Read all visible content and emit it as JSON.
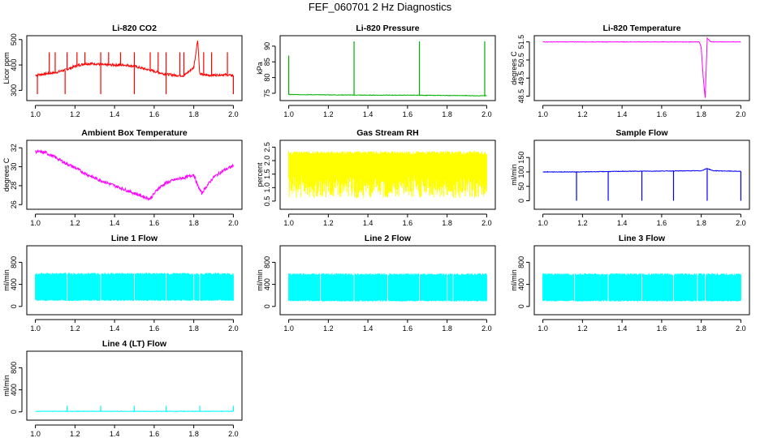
{
  "title": "FEF_060701  2 Hz Diagnostics",
  "colors": {
    "red": "#ff0000",
    "green": "#00b000",
    "magenta": "#ff00ff",
    "yellow": "#ffff00",
    "blue": "#0000ff",
    "cyan": "#00ffff"
  },
  "chart_data": [
    {
      "id": "co2",
      "type": "line",
      "title": "Li-820 CO2",
      "xlabel": "",
      "ylabel": "Licor ppm",
      "color": "red",
      "xlim": [
        1.0,
        2.0
      ],
      "ylim": [
        270,
        505
      ],
      "xticks": [
        "1.0",
        "1.2",
        "1.4",
        "1.6",
        "1.8",
        "2.0"
      ],
      "yticks": [
        {
          "v": 300,
          "label": "300"
        },
        {
          "v": 400,
          "label": "400"
        },
        {
          "v": 500,
          "label": "500"
        }
      ],
      "series": [
        {
          "name": "CO2",
          "x": [
            1.0,
            1.05,
            1.1,
            1.15,
            1.2,
            1.25,
            1.3,
            1.35,
            1.4,
            1.45,
            1.5,
            1.55,
            1.6,
            1.65,
            1.7,
            1.75,
            1.8,
            1.82,
            1.83,
            1.85,
            1.9,
            1.95,
            2.0
          ],
          "y": [
            360,
            365,
            370,
            380,
            395,
            405,
            405,
            400,
            400,
            400,
            395,
            385,
            375,
            365,
            360,
            358,
            390,
            500,
            365,
            360,
            360,
            362,
            358
          ],
          "spikes_up": [
            1.07,
            1.1,
            1.16,
            1.21,
            1.25,
            1.33,
            1.37,
            1.43,
            1.5,
            1.58,
            1.62,
            1.66,
            1.73,
            1.75,
            1.85,
            1.89,
            1.97
          ],
          "spike_up_value": 450,
          "spikes_down": [
            1.01,
            1.15,
            1.33,
            1.5,
            1.66,
            2.0
          ],
          "spike_down_value": 285
        }
      ]
    },
    {
      "id": "pressure",
      "type": "line",
      "title": "Li-820 Pressure",
      "xlabel": "",
      "ylabel": "kPa",
      "color": "green",
      "xlim": [
        1.0,
        2.0
      ],
      "ylim": [
        73.5,
        92.5
      ],
      "xticks": [
        "1.0",
        "1.2",
        "1.4",
        "1.6",
        "1.8",
        "2.0"
      ],
      "yticks": [
        {
          "v": 75,
          "label": "75"
        },
        {
          "v": 80,
          "label": "80"
        },
        {
          "v": 85,
          "label": "85"
        },
        {
          "v": 90,
          "label": "90"
        }
      ],
      "series": [
        {
          "name": "Pressure",
          "x": [
            1.0,
            1.2,
            1.4,
            1.6,
            1.8,
            2.0
          ],
          "y": [
            74.6,
            74.5,
            74.4,
            74.4,
            74.3,
            74.2
          ],
          "spikes_up": [
            1.0,
            1.33,
            1.66,
            1.99
          ],
          "spike_up_values": [
            87,
            91.5,
            91.5,
            91.5
          ],
          "spikes_down": [],
          "spike_down_value": 74
        }
      ]
    },
    {
      "id": "licor_temp",
      "type": "line",
      "title": "Li-820 Temperature",
      "xlabel": "",
      "ylabel": "degrees C",
      "color": "magenta",
      "xlim": [
        1.0,
        2.0
      ],
      "ylim": [
        48.4,
        51.7
      ],
      "xticks": [
        "1.0",
        "1.2",
        "1.4",
        "1.6",
        "1.8",
        "2.0"
      ],
      "yticks": [
        {
          "v": 48.5,
          "label": "48.5"
        },
        {
          "v": 49.5,
          "label": "49.5"
        },
        {
          "v": 50.5,
          "label": "50.5"
        },
        {
          "v": 51.5,
          "label": "51.5"
        }
      ],
      "series": [
        {
          "name": "Licor Temp",
          "x": [
            1.0,
            1.2,
            1.4,
            1.6,
            1.79,
            1.8,
            1.81,
            1.82,
            1.83,
            1.85,
            1.9,
            2.0
          ],
          "y": [
            51.5,
            51.5,
            51.5,
            51.5,
            51.5,
            51.2,
            49.5,
            48.4,
            51.7,
            51.5,
            51.5,
            51.5
          ],
          "spikes_up": [],
          "spikes_down": [],
          "spike_down_value": 48.5
        }
      ]
    },
    {
      "id": "ambient_temp",
      "type": "line",
      "title": "Ambient Box Temperature",
      "xlabel": "",
      "ylabel": "degrees C",
      "color": "magenta",
      "xlim": [
        1.0,
        2.0
      ],
      "ylim": [
        25.8,
        32.5
      ],
      "xticks": [
        "1.0",
        "1.2",
        "1.4",
        "1.6",
        "1.8",
        "2.0"
      ],
      "yticks": [
        {
          "v": 26,
          "label": "26"
        },
        {
          "v": 28,
          "label": "28"
        },
        {
          "v": 30,
          "label": "30"
        },
        {
          "v": 32,
          "label": "32"
        }
      ],
      "series": [
        {
          "name": "Ambient",
          "x": [
            1.0,
            1.05,
            1.1,
            1.15,
            1.2,
            1.25,
            1.3,
            1.35,
            1.4,
            1.45,
            1.5,
            1.55,
            1.58,
            1.62,
            1.66,
            1.7,
            1.74,
            1.78,
            1.8,
            1.82,
            1.84,
            1.86,
            1.9,
            1.95,
            2.0
          ],
          "y": [
            31.6,
            31.5,
            31.0,
            30.4,
            29.9,
            29.3,
            28.8,
            28.4,
            28.0,
            27.6,
            27.2,
            26.8,
            26.6,
            27.7,
            28.3,
            28.6,
            28.8,
            29.0,
            29.2,
            28.0,
            27.2,
            27.8,
            28.9,
            29.6,
            30.1
          ],
          "spikes_up": [],
          "spikes_down": [],
          "spike_down_value": 26
        }
      ]
    },
    {
      "id": "rh",
      "type": "line",
      "title": "Gas Stream RH",
      "xlabel": "",
      "ylabel": "percent",
      "color": "yellow",
      "xlim": [
        1.0,
        2.0
      ],
      "ylim": [
        0.3,
        2.65
      ],
      "xticks": [
        "1.0",
        "1.2",
        "1.4",
        "1.6",
        "1.8",
        "2.0"
      ],
      "yticks": [
        {
          "v": 0.5,
          "label": "0.5"
        },
        {
          "v": 1.0,
          "label": "1.0"
        },
        {
          "v": 1.5,
          "label": "1.5"
        },
        {
          "v": 2.0,
          "label": "2.0"
        },
        {
          "v": 2.5,
          "label": "2.5"
        }
      ],
      "series": [
        {
          "name": "RH",
          "band_low": 0.6,
          "band_high": 2.35,
          "fill": true,
          "x": [
            1.0,
            2.0
          ],
          "y": [
            2.3,
            2.3
          ],
          "spikes_up": [],
          "spikes_down": [],
          "spike_down_value": 0.5
        }
      ]
    },
    {
      "id": "sample_flow",
      "type": "line",
      "title": "Sample Flow",
      "xlabel": "",
      "ylabel": "ml/min",
      "color": "blue",
      "xlim": [
        1.0,
        2.0
      ],
      "ylim": [
        -20,
        200
      ],
      "xticks": [
        "1.0",
        "1.2",
        "1.4",
        "1.6",
        "1.8",
        "2.0"
      ],
      "yticks": [
        {
          "v": 0,
          "label": "0"
        },
        {
          "v": 50,
          "label": "50"
        },
        {
          "v": 100,
          "label": "100"
        },
        {
          "v": 150,
          "label": "150"
        }
      ],
      "series": [
        {
          "name": "Sample Flow",
          "x": [
            1.0,
            1.2,
            1.4,
            1.6,
            1.8,
            1.83,
            1.86,
            2.0
          ],
          "y": [
            100,
            100,
            102,
            103,
            104,
            112,
            104,
            102
          ],
          "spikes_up": [],
          "spikes_down": [
            1.17,
            1.33,
            1.5,
            1.66,
            1.83,
            2.0
          ],
          "spike_down_value": 0
        }
      ]
    },
    {
      "id": "line1",
      "type": "line",
      "title": "Line 1 Flow",
      "xlabel": "",
      "ylabel": "ml/min",
      "color": "cyan",
      "xlim": [
        1.0,
        2.0
      ],
      "ylim": [
        -100,
        1050
      ],
      "xticks": [
        "1.0",
        "1.2",
        "1.4",
        "1.6",
        "1.8",
        "2.0"
      ],
      "yticks": [
        {
          "v": 0,
          "label": "0"
        },
        {
          "v": 400,
          "label": "400"
        },
        {
          "v": 800,
          "label": "800"
        }
      ],
      "series": [
        {
          "name": "Line 1",
          "band_low": 100,
          "band_high": 610,
          "fill": true,
          "gaps": [
            1.16,
            1.33,
            1.5,
            1.66,
            1.8,
            1.83
          ],
          "x": [
            1.0,
            2.0
          ],
          "y": [
            600,
            600
          ],
          "spikes_up": [],
          "spikes_down": [],
          "spike_down_value": 0
        }
      ]
    },
    {
      "id": "line2",
      "type": "line",
      "title": "Line 2 Flow",
      "xlabel": "",
      "ylabel": "ml/min",
      "color": "cyan",
      "xlim": [
        1.0,
        2.0
      ],
      "ylim": [
        -100,
        1050
      ],
      "xticks": [
        "1.0",
        "1.2",
        "1.4",
        "1.6",
        "1.8",
        "2.0"
      ],
      "yticks": [
        {
          "v": 0,
          "label": "0"
        },
        {
          "v": 400,
          "label": "400"
        },
        {
          "v": 800,
          "label": "800"
        }
      ],
      "series": [
        {
          "name": "Line 2",
          "band_low": 90,
          "band_high": 600,
          "fill": true,
          "gaps": [
            1.16,
            1.33,
            1.5,
            1.66,
            1.8,
            1.83
          ],
          "x": [
            1.0,
            2.0
          ],
          "y": [
            590,
            590
          ],
          "spikes_up": [],
          "spikes_down": [],
          "spike_down_value": 0
        }
      ]
    },
    {
      "id": "line3",
      "type": "line",
      "title": "Line 3 Flow",
      "xlabel": "",
      "ylabel": "ml/min",
      "color": "cyan",
      "xlim": [
        1.0,
        2.0
      ],
      "ylim": [
        -100,
        1050
      ],
      "xticks": [
        "1.0",
        "1.2",
        "1.4",
        "1.6",
        "1.8",
        "2.0"
      ],
      "yticks": [
        {
          "v": 0,
          "label": "0"
        },
        {
          "v": 400,
          "label": "400"
        },
        {
          "v": 800,
          "label": "800"
        }
      ],
      "series": [
        {
          "name": "Line 3",
          "band_low": 90,
          "band_high": 600,
          "fill": true,
          "gaps": [
            1.16,
            1.33,
            1.5,
            1.66,
            1.78,
            1.82
          ],
          "x": [
            1.0,
            2.0
          ],
          "y": [
            590,
            590
          ],
          "spikes_up": [],
          "spikes_down": [],
          "spike_down_value": 0
        }
      ]
    },
    {
      "id": "line4",
      "type": "line",
      "title": "Line 4 (LT) Flow",
      "xlabel": "",
      "ylabel": "ml/min",
      "color": "cyan",
      "xlim": [
        1.0,
        2.0
      ],
      "ylim": [
        -100,
        1050
      ],
      "xticks": [
        "1.0",
        "1.2",
        "1.4",
        "1.6",
        "1.8",
        "2.0"
      ],
      "yticks": [
        {
          "v": 0,
          "label": "0"
        },
        {
          "v": 400,
          "label": "400"
        },
        {
          "v": 800,
          "label": "800"
        }
      ],
      "series": [
        {
          "name": "Line 4",
          "x": [
            1.0,
            2.0
          ],
          "y": [
            10,
            10
          ],
          "spikes_up": [
            1.16,
            1.33,
            1.5,
            1.66,
            1.83,
            2.0
          ],
          "spike_up_value": 110,
          "spikes_down": [],
          "spike_down_value": 0
        }
      ]
    }
  ]
}
